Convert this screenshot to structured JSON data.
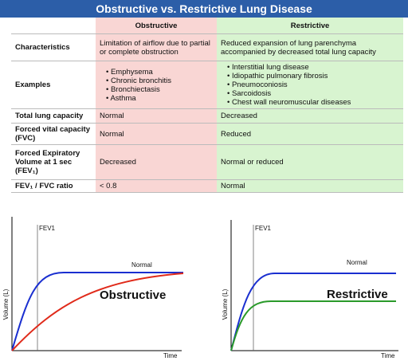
{
  "title": "Obstructive vs. Restrictive Lung Disease",
  "table": {
    "columns": [
      "Obstructive",
      "Restrictive"
    ],
    "rows": [
      {
        "label": "Characteristics",
        "obstructive": [
          "Limitation of airflow due to partial or complete obstruction"
        ],
        "restrictive": [
          "Reduced expansion of lung parenchyma accompanied by decreased total lung capacity"
        ]
      },
      {
        "label": "Examples",
        "obstructive": [
          "Emphysema",
          "Chronic bronchitis",
          "Bronchiectasis",
          "Asthma"
        ],
        "restrictive": [
          "Interstitial lung disease",
          "Idiopathic pulmonary fibrosis",
          "Pneumoconiosis",
          "Sarcoidosis",
          "Chest wall neuromuscular diseases"
        ]
      },
      {
        "label": "Total lung capacity",
        "obstructive": [
          "Normal"
        ],
        "restrictive": [
          "Decreased"
        ]
      },
      {
        "label": "Forced vital capacity (FVC)",
        "obstructive": [
          "Normal"
        ],
        "restrictive": [
          "Reduced"
        ]
      },
      {
        "label": "Forced Expiratory Volume at 1 sec (FEV₁)",
        "obstructive": [
          "Decreased"
        ],
        "restrictive": [
          "Normal or reduced"
        ]
      },
      {
        "label": "FEV₁ / FVC ratio",
        "obstructive": [
          "< 0.8"
        ],
        "restrictive": [
          "Normal"
        ]
      }
    ]
  },
  "graphs": [
    {
      "title": "Obstructive",
      "x_label": "Time",
      "y_label": "Volume (L)",
      "fev1_label": "FEV1",
      "normal_label": "Normal"
    },
    {
      "title": "Restrictive",
      "x_label": "Time",
      "y_label": "Volume (L)",
      "fev1_label": "FEV1",
      "normal_label": "Normal"
    }
  ]
}
